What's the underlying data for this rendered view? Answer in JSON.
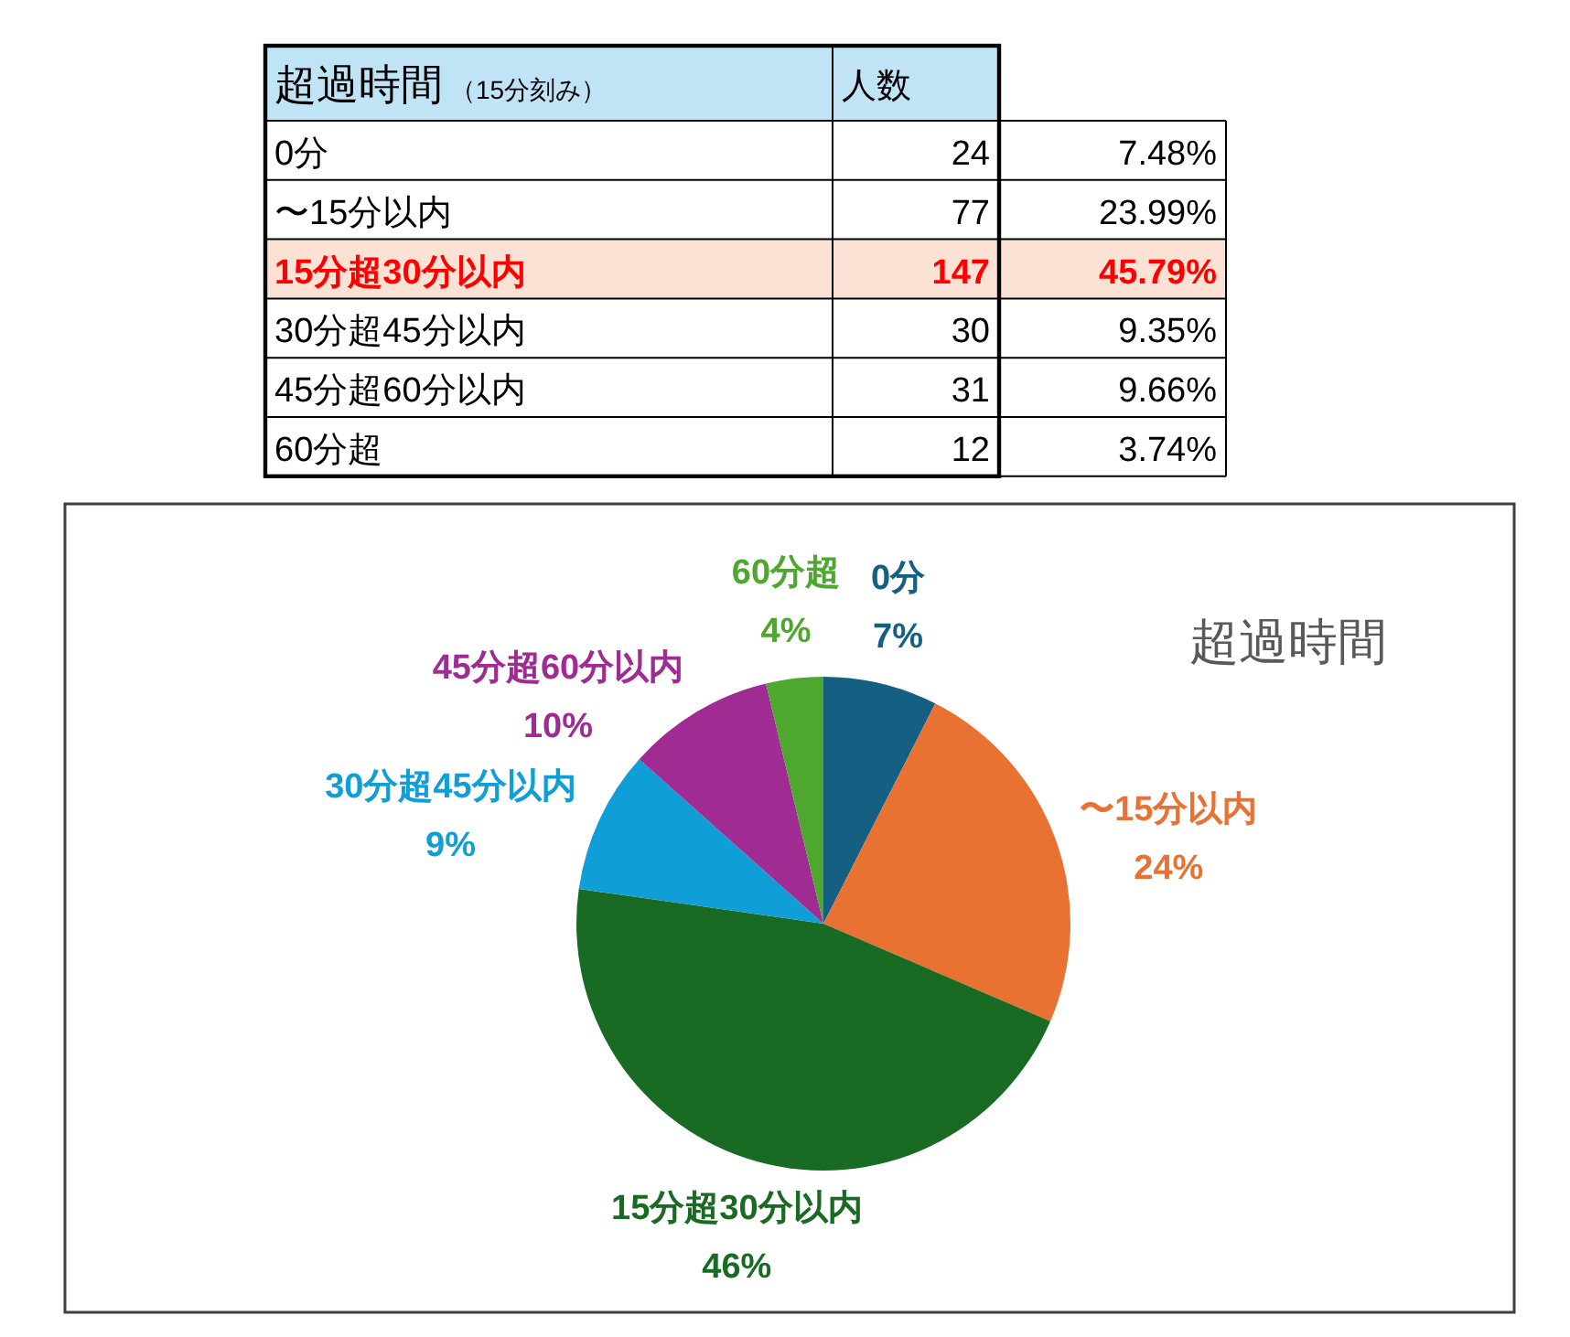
{
  "chart_data": [
    {
      "type": "other",
      "annotations": [
        "超過時間",
        "（15分刻み）",
        "7.48%",
        "23.99%",
        "45.79%",
        "9.35%",
        "9.66%",
        "3.74%"
      ],
      "categories": [
        "0分",
        "〜15分以内",
        "15分超30分以内",
        "30分超45分以内",
        "45分超60分以内",
        "60分超"
      ],
      "series": [
        {
          "name": "人数",
          "values": [
            24,
            77,
            147,
            30,
            31,
            12
          ]
        }
      ],
      "data_labels": true
    },
    {
      "type": "pie",
      "title": "超過時間",
      "categories": [
        "0分",
        "〜15分以内",
        "15分超30分以内",
        "30分超45分以内",
        "45分超60分以内",
        "60分超"
      ],
      "values": [
        7.48,
        23.99,
        45.79,
        9.35,
        9.66,
        3.74
      ],
      "colors": [
        "#156082",
        "#e97132",
        "#196b24",
        "#0f9ed5",
        "#a02b93",
        "#4ea72e"
      ],
      "value_labels": [
        "7%",
        "24%",
        "46%",
        "9%",
        "10%",
        "4%"
      ]
    }
  ]
}
